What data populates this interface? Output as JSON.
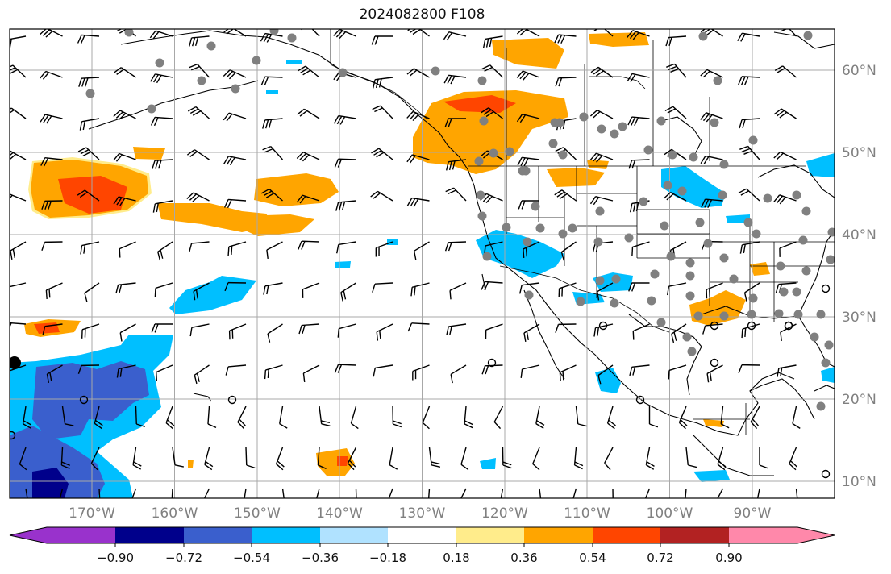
{
  "title": "2024082800 F108",
  "map": {
    "projection": "plate-carree",
    "lon_range": [
      -180,
      -80
    ],
    "lat_range": [
      8,
      65
    ],
    "lon_ticks": [
      "170°W",
      "160°W",
      "150°W",
      "140°W",
      "130°W",
      "120°W",
      "110°W",
      "100°W",
      "90°W"
    ],
    "lat_ticks": [
      "60°N",
      "50°N",
      "40°N",
      "30°N",
      "20°N",
      "10°N"
    ],
    "gridlines": true
  },
  "colorbar": {
    "orientation": "horizontal",
    "extend": "both",
    "colors": [
      "#9932CC",
      "#00008B",
      "#3A5FCD",
      "#00BFFF",
      "#B0E2FF",
      "#FFFFFF",
      "#FFEC8B",
      "#FFA500",
      "#FF4500",
      "#B22222",
      "#FF88AA"
    ],
    "tick_labels": [
      "−0.90",
      "−0.72",
      "−0.54",
      "−0.36",
      "−0.18",
      "0.18",
      "0.36",
      "0.54",
      "0.72",
      "0.90"
    ]
  },
  "legend_markers": {
    "gray_dot_color": "#808080",
    "open_circle_color": "#000000"
  }
}
